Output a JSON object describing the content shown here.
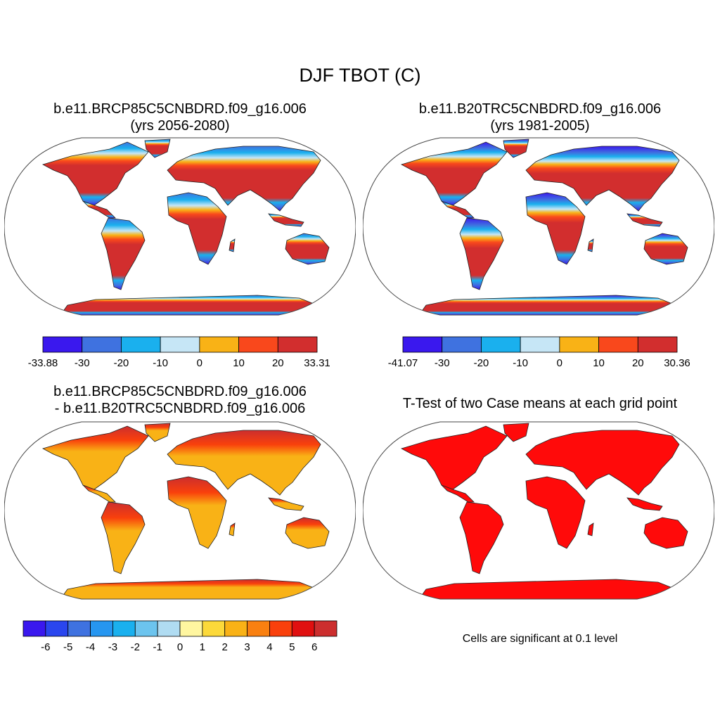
{
  "main_title": "DJF TBOT (C)",
  "panels": [
    {
      "title_line1": "b.e11.BRCP85C5CNBDRD.f09_g16.006",
      "title_line2": "(yrs 2056-2080)"
    },
    {
      "title_line1": "b.e11.B20TRC5CNBDRD.f09_g16.006",
      "title_line2": "(yrs 1981-2005)"
    },
    {
      "title_line1": "b.e11.BRCP85C5CNBDRD.f09_g16.006",
      "title_line2": "- b.e11.B20TRC5CNBDRD.f09_g16.006"
    },
    {
      "title_line1": "T-Test of two Case means at each grid point"
    }
  ],
  "colorbars": [
    {
      "colors": [
        "#3a18ee",
        "#3f72e0",
        "#1ab0ee",
        "#c6e6f6",
        "#f9b216",
        "#f9481c",
        "#d22e2e"
      ],
      "labels": [
        "-33.88",
        "-30",
        "-20",
        "-10",
        "0",
        "10",
        "20",
        "33.31"
      ]
    },
    {
      "colors": [
        "#3a18ee",
        "#3f72e0",
        "#1ab0ee",
        "#c6e6f6",
        "#f9b216",
        "#f9481c",
        "#d22e2e"
      ],
      "labels": [
        "-41.07",
        "-30",
        "-20",
        "-10",
        "0",
        "10",
        "20",
        "30.36"
      ]
    },
    {
      "colors": [
        "#3a18ee",
        "#2a46ee",
        "#3f72e0",
        "#2696f0",
        "#1ab0ee",
        "#6cc4ee",
        "#b0dcf2",
        "#fff6a0",
        "#fcd93a",
        "#f9b216",
        "#f98010",
        "#f9400c",
        "#e01010",
        "#cc2e2e"
      ],
      "labels": [
        "-6",
        "-5",
        "-4",
        "-3",
        "-2",
        "-1",
        "0",
        "1",
        "2",
        "3",
        "4",
        "5",
        "6"
      ]
    }
  ],
  "significance_note": "Cells are significant at 0.1 level"
}
